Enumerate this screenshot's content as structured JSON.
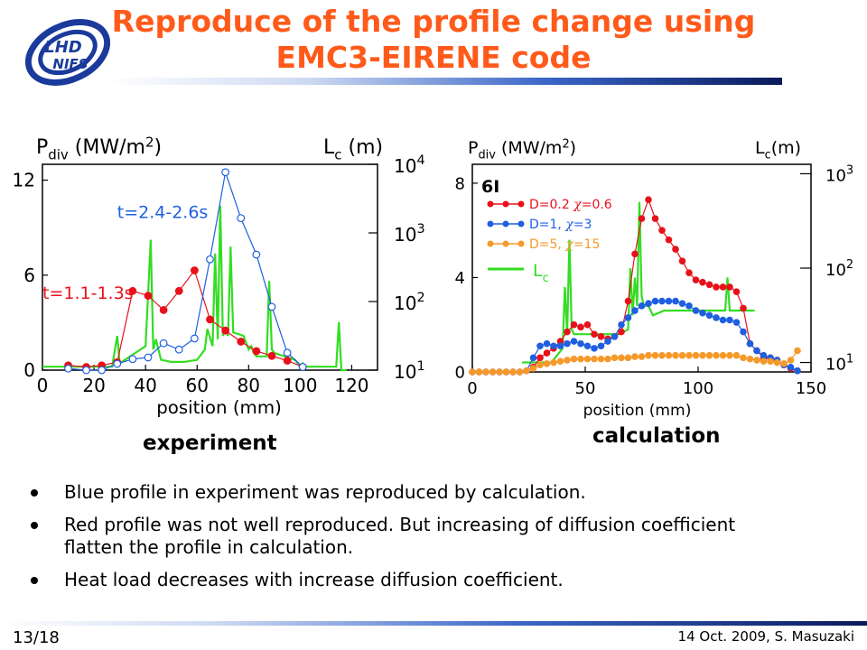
{
  "title": {
    "line1": "Reproduce of the profile change using",
    "line2": "EMC3-EIRENE code"
  },
  "logo": {
    "text_top": "LHD",
    "text_bottom": "NIFS",
    "color": "#1a3a9c"
  },
  "chart_data": [
    {
      "type": "line",
      "caption": "experiment",
      "xlabel": "position (mm)",
      "ylabel_left_main": "P",
      "ylabel_left_sub": "div",
      "ylabel_left_unit": "(MW/m",
      "ylabel_left_sup": "2",
      "ylabel_left_close": ")",
      "ylabel_right_main": "L",
      "ylabel_right_sub": "c",
      "ylabel_right_unit": "(m)",
      "xlim": [
        0,
        130
      ],
      "ylim": [
        0,
        13
      ],
      "xticks": [
        "0",
        "20",
        "40",
        "60",
        "80",
        "100",
        "120"
      ],
      "xtick_values": [
        0,
        20,
        40,
        60,
        80,
        100,
        120
      ],
      "yticks": [
        "0",
        "6",
        "12"
      ],
      "ytick_values": [
        0,
        6,
        12
      ],
      "right_axis_log_range": [
        1,
        4
      ],
      "right_ticks": [
        {
          "base": "10",
          "exp": "1",
          "value": 1
        },
        {
          "base": "10",
          "exp": "2",
          "value": 2
        },
        {
          "base": "10",
          "exp": "3",
          "value": 3
        },
        {
          "base": "10",
          "exp": "4",
          "value": 4
        }
      ],
      "series": [
        {
          "name": "t=1.1-1.3s",
          "color": "#e8101a",
          "marker": "filled",
          "x": [
            10,
            17,
            23,
            29,
            35,
            41,
            47,
            53,
            59,
            65,
            71,
            77,
            83,
            89,
            95,
            101
          ],
          "y": [
            0.3,
            0.2,
            0.3,
            0.5,
            5.0,
            4.7,
            3.8,
            5.0,
            6.3,
            3.2,
            2.5,
            1.8,
            1.2,
            0.9,
            0.6,
            0.2
          ]
        },
        {
          "name": "t=2.4-2.6s",
          "color": "#1f5fe0",
          "marker": "open",
          "x": [
            10,
            17,
            23,
            29,
            35,
            41,
            47,
            53,
            59,
            65,
            71,
            77,
            83,
            89,
            95,
            101
          ],
          "y": [
            0.1,
            0.0,
            0.0,
            0.4,
            0.7,
            0.8,
            1.7,
            1.3,
            2.0,
            7.0,
            12.5,
            9.6,
            7.3,
            4.0,
            1.1,
            0.2
          ]
        }
      ],
      "lc_series": {
        "color": "#33dd22",
        "x": [
          0,
          27,
          29,
          30,
          32,
          40,
          42,
          43,
          44,
          46,
          50,
          55,
          60,
          63,
          64,
          66,
          67,
          68,
          69,
          70,
          71,
          72,
          73,
          74,
          78,
          80,
          81,
          82,
          83,
          87,
          88,
          89,
          90,
          98,
          100,
          101,
          102,
          112,
          114,
          115,
          116,
          118
        ],
        "logy": [
          1.05,
          1.05,
          1.5,
          1.1,
          1.15,
          1.35,
          2.9,
          1.3,
          1.45,
          1.15,
          1.12,
          1.12,
          1.15,
          1.3,
          1.6,
          1.35,
          2.7,
          1.45,
          3.4,
          1.5,
          1.6,
          1.5,
          2.8,
          1.55,
          1.5,
          1.3,
          1.35,
          1.25,
          1.2,
          1.2,
          2.3,
          1.3,
          1.25,
          1.15,
          1.05,
          1.1,
          1.05,
          1.05,
          1.05,
          1.7,
          1.0,
          1.0
        ]
      }
    },
    {
      "type": "line",
      "caption": "calculation",
      "xlabel": "position (mm)",
      "ylabel_left_main": "P",
      "ylabel_left_sub": "div",
      "ylabel_left_unit": "(MW/m",
      "ylabel_left_sup": "2",
      "ylabel_left_close": ")",
      "ylabel_right_main": "L",
      "ylabel_right_sub": "c",
      "ylabel_right_unit": "(m)",
      "annotation": "6I",
      "xlim": [
        0,
        150
      ],
      "ylim": [
        0,
        8.8
      ],
      "xticks": [
        "0",
        "50",
        "100",
        "150"
      ],
      "xtick_values": [
        0,
        50,
        100,
        150
      ],
      "yticks": [
        "0",
        "4",
        "8"
      ],
      "ytick_values": [
        0,
        4,
        8
      ],
      "right_axis_log_range": [
        0.9,
        3.1
      ],
      "right_ticks": [
        {
          "base": "10",
          "exp": "1",
          "value": 1
        },
        {
          "base": "10",
          "exp": "2",
          "value": 2
        },
        {
          "base": "10",
          "exp": "3",
          "value": 3
        }
      ],
      "legend": [
        {
          "label_a": "D=0.2 ",
          "chi": "χ",
          "label_b": "=0.6",
          "color": "#e8101a"
        },
        {
          "label_a": "D=1, ",
          "chi": "χ",
          "label_b": "=3",
          "color": "#1f5fe0"
        },
        {
          "label_a": "D=5, ",
          "chi": "χ",
          "label_b": "=15",
          "color": "#f59a2a"
        },
        {
          "label_a": "L",
          "sub": "c",
          "color": "#33dd22"
        }
      ],
      "series": [
        {
          "name": "D=0.2 χ=0.6",
          "color": "#e8101a",
          "x": [
            0,
            3,
            6,
            9,
            12,
            15,
            18,
            21,
            24,
            27,
            30,
            33,
            36,
            39,
            42,
            45,
            48,
            51,
            54,
            57,
            60,
            63,
            66,
            69,
            72,
            75,
            78,
            81,
            84,
            87,
            90,
            93,
            96,
            99,
            102,
            105,
            108,
            111,
            114,
            117,
            120,
            123,
            126,
            129,
            132,
            135,
            138,
            141,
            144
          ],
          "y": [
            0.0,
            0.0,
            0.0,
            0.0,
            0.0,
            0.0,
            0.0,
            0.0,
            0.05,
            0.2,
            0.6,
            0.8,
            1.0,
            1.3,
            1.7,
            2.0,
            1.9,
            2.0,
            1.6,
            1.5,
            1.4,
            1.5,
            1.7,
            3.0,
            5.0,
            6.5,
            7.3,
            6.5,
            6.0,
            5.6,
            5.2,
            4.7,
            4.2,
            3.9,
            3.8,
            3.7,
            3.6,
            3.6,
            3.6,
            3.4,
            2.7,
            1.2,
            0.9,
            0.6,
            0.6,
            0.5,
            0.3,
            0.15,
            0.05
          ]
        },
        {
          "name": "D=1, χ=3",
          "color": "#1f5fe0",
          "x": [
            0,
            3,
            6,
            9,
            12,
            15,
            18,
            21,
            24,
            27,
            30,
            33,
            36,
            39,
            42,
            45,
            48,
            51,
            54,
            57,
            60,
            63,
            66,
            69,
            72,
            75,
            78,
            81,
            84,
            87,
            90,
            93,
            96,
            99,
            102,
            105,
            108,
            111,
            114,
            117,
            120,
            123,
            126,
            129,
            132,
            135,
            138,
            141,
            144
          ],
          "y": [
            0.0,
            0.0,
            0.0,
            0.0,
            0.0,
            0.0,
            0.0,
            0.0,
            0.05,
            0.6,
            1.1,
            1.2,
            1.1,
            1.1,
            1.2,
            1.3,
            1.2,
            1.1,
            1.0,
            1.1,
            1.3,
            1.5,
            2.0,
            2.3,
            2.6,
            2.8,
            2.9,
            3.0,
            3.0,
            3.0,
            3.0,
            2.9,
            2.8,
            2.6,
            2.5,
            2.4,
            2.3,
            2.2,
            2.2,
            2.1,
            1.7,
            1.2,
            0.9,
            0.7,
            0.6,
            0.5,
            0.3,
            0.2,
            0.05
          ]
        },
        {
          "name": "D=5, χ=15",
          "color": "#f59a2a",
          "x": [
            0,
            3,
            6,
            9,
            12,
            15,
            18,
            21,
            24,
            27,
            30,
            33,
            36,
            39,
            42,
            45,
            48,
            51,
            54,
            57,
            60,
            63,
            66,
            69,
            72,
            75,
            78,
            81,
            84,
            87,
            90,
            93,
            96,
            99,
            102,
            105,
            108,
            111,
            114,
            117,
            120,
            123,
            126,
            129,
            132,
            135,
            138,
            141,
            144
          ],
          "y": [
            0.0,
            0.0,
            0.0,
            0.0,
            0.0,
            0.0,
            0.0,
            0.0,
            0.05,
            0.15,
            0.3,
            0.35,
            0.4,
            0.45,
            0.5,
            0.55,
            0.55,
            0.55,
            0.55,
            0.55,
            0.55,
            0.6,
            0.6,
            0.6,
            0.65,
            0.65,
            0.7,
            0.7,
            0.7,
            0.7,
            0.7,
            0.7,
            0.7,
            0.7,
            0.7,
            0.7,
            0.7,
            0.7,
            0.7,
            0.7,
            0.6,
            0.55,
            0.5,
            0.45,
            0.45,
            0.4,
            0.35,
            0.5,
            0.9
          ]
        }
      ],
      "lc_series": {
        "color": "#33dd22",
        "x": [
          22,
          30,
          35,
          40,
          41,
          42,
          43,
          44,
          45,
          48,
          55,
          62,
          65,
          69,
          70,
          71,
          72,
          73,
          74,
          75,
          76,
          77,
          78,
          80,
          85,
          90,
          100,
          110,
          112,
          113,
          114,
          118,
          125
        ],
        "logy": [
          1.0,
          1.0,
          1.0,
          1.15,
          1.8,
          1.3,
          2.3,
          1.35,
          1.3,
          1.3,
          1.3,
          1.3,
          1.3,
          1.35,
          2.0,
          1.5,
          1.9,
          1.6,
          2.7,
          1.7,
          1.6,
          1.6,
          1.6,
          1.5,
          1.55,
          1.55,
          1.55,
          1.55,
          1.55,
          1.9,
          1.55,
          1.55,
          1.55
        ]
      }
    }
  ],
  "bullets": [
    "Blue profile in experiment was reproduced by calculation.",
    "Red profile was not well reproduced. But increasing of diffusion coefficient flatten the profile in calculation.",
    "Heat load decreases with increase diffusion coefficient."
  ],
  "footer": {
    "slide_number": "13/18",
    "date_author": "14 Oct. 2009, S. Masuzaki"
  }
}
